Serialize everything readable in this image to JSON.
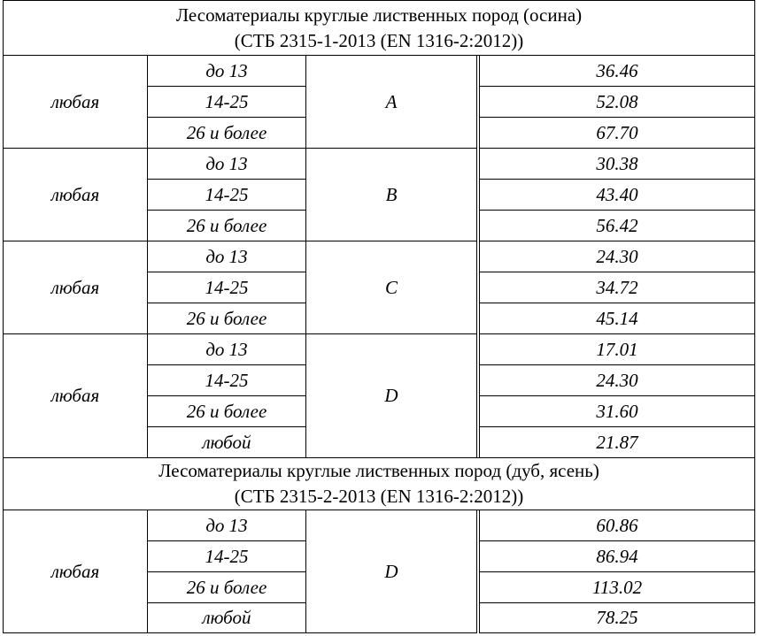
{
  "sections": [
    {
      "title_line1": "Лесоматериалы  круглые   лиственных   пород (осина)",
      "title_line2": "(СТБ 2315-1-2013 (EN 1316-2:2012))",
      "groups": [
        {
          "species": "любая",
          "grade": "A",
          "rows": [
            {
              "diameter": "до 13",
              "price": "36.46"
            },
            {
              "diameter": "14-25",
              "price": "52.08"
            },
            {
              "diameter": "26 и более",
              "price": "67.70"
            }
          ]
        },
        {
          "species": "любая",
          "grade": "B",
          "rows": [
            {
              "diameter": "до 13",
              "price": "30.38"
            },
            {
              "diameter": "14-25",
              "price": "43.40"
            },
            {
              "diameter": "26 и более",
              "price": "56.42"
            }
          ]
        },
        {
          "species": "любая",
          "grade": "C",
          "rows": [
            {
              "diameter": "до 13",
              "price": "24.30"
            },
            {
              "diameter": "14-25",
              "price": "34.72"
            },
            {
              "diameter": "26 и более",
              "price": "45.14"
            }
          ]
        },
        {
          "species": "любая",
          "grade": "D",
          "rows": [
            {
              "diameter": "до 13",
              "price": "17.01"
            },
            {
              "diameter": "14-25",
              "price": "24.30"
            },
            {
              "diameter": "26 и более",
              "price": "31.60"
            },
            {
              "diameter": "любой",
              "price": "21.87"
            }
          ]
        }
      ]
    },
    {
      "title_line1": "Лесоматериалы круглые лиственных пород (дуб, ясень)",
      "title_line2": "(СТБ 2315-2-2013 (EN 1316-2:2012))",
      "groups": [
        {
          "species": "любая",
          "grade": "D",
          "rows": [
            {
              "diameter": "до 13",
              "price": "60.86"
            },
            {
              "diameter": "14-25",
              "price": "86.94"
            },
            {
              "diameter": "26 и более",
              "price": "113.02"
            },
            {
              "diameter": "любой",
              "price": "78.25"
            }
          ]
        }
      ]
    }
  ]
}
